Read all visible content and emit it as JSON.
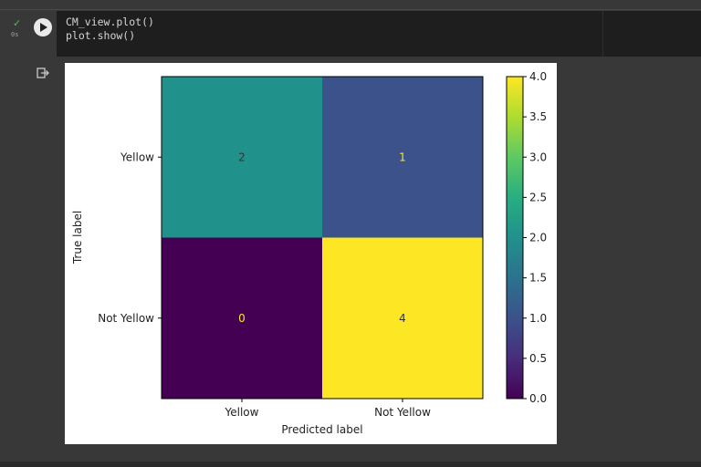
{
  "cell": {
    "status_icon": "check-icon",
    "exec_time": "0s",
    "code_lines": [
      "CM_view.plot()",
      "plot.show()"
    ]
  },
  "output": {
    "icon": "output-redirect-icon"
  },
  "colors": {
    "viridis_dark": "#440154",
    "viridis_blue": "#3b528b",
    "viridis_teal": "#21918c",
    "viridis_yellow": "#fde725",
    "code_bg": "#1e1e1e",
    "page_bg": "#383838"
  },
  "chart_data": {
    "type": "heatmap",
    "xlabel": "Predicted label",
    "ylabel": "True label",
    "x_categories": [
      "Yellow",
      "Not Yellow"
    ],
    "y_categories": [
      "Yellow",
      "Not Yellow"
    ],
    "values": [
      [
        2,
        1
      ],
      [
        0,
        4
      ]
    ],
    "colormap": "viridis",
    "colorbar": {
      "range": [
        0,
        4
      ],
      "ticks": [
        "0.0",
        "0.5",
        "1.0",
        "1.5",
        "2.0",
        "2.5",
        "3.0",
        "3.5",
        "4.0"
      ]
    }
  }
}
